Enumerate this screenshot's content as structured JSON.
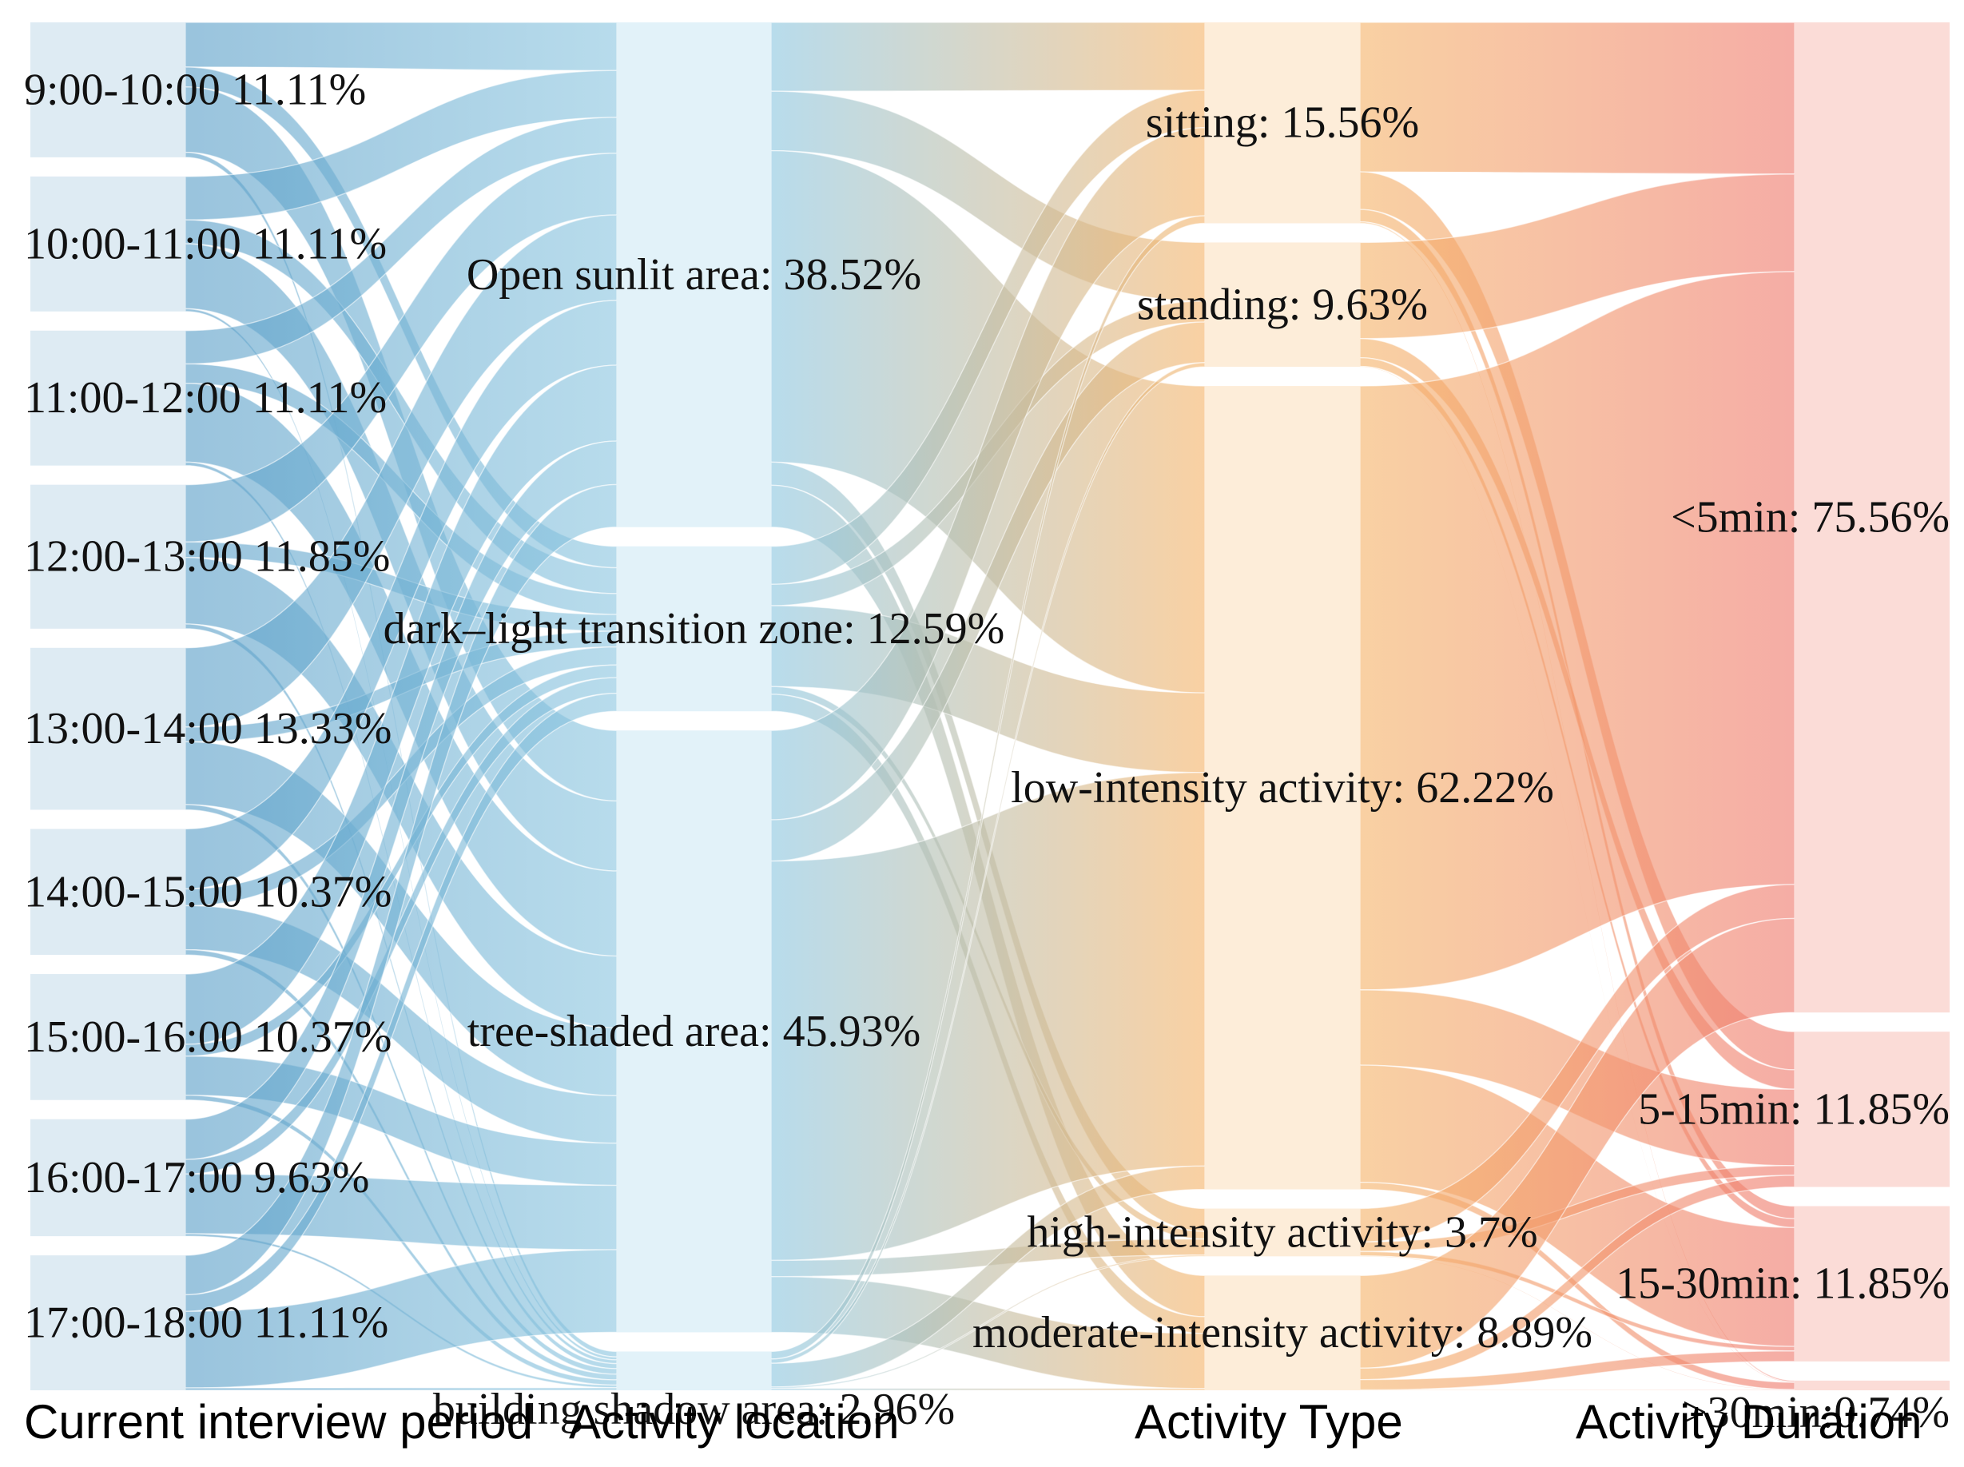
{
  "chart_data": {
    "type": "sankey",
    "columns": [
      {
        "title": "Current interview period",
        "color": "#5b9fc8",
        "node_fill": "#dbe9f2",
        "nodes": [
          {
            "name": "9:00-10:00",
            "value": 11.11,
            "label": "9:00-10:00 11.11%"
          },
          {
            "name": "10:00-11:00",
            "value": 11.11,
            "label": "10:00-11:00 11.11%"
          },
          {
            "name": "11:00-12:00",
            "value": 11.11,
            "label": "11:00-12:00 11.11%"
          },
          {
            "name": "12:00-13:00",
            "value": 11.85,
            "label": "12:00-13:00 11.85%"
          },
          {
            "name": "13:00-14:00",
            "value": 13.33,
            "label": "13:00-14:00 13.33%"
          },
          {
            "name": "14:00-15:00",
            "value": 10.37,
            "label": "14:00-15:00 10.37%"
          },
          {
            "name": "15:00-16:00",
            "value": 10.37,
            "label": "15:00-16:00 10.37%"
          },
          {
            "name": "16:00-17:00",
            "value": 9.63,
            "label": "16:00-17:00 9.63%"
          },
          {
            "name": "17:00-18:00",
            "value": 11.11,
            "label": "17:00-18:00 11.11%"
          }
        ]
      },
      {
        "title": "Activity location",
        "color": "#8cc6e0",
        "node_fill": "#e0f1f8",
        "nodes": [
          {
            "name": "Open sunlit area",
            "value": 38.52,
            "label": "Open sunlit area: 38.52%"
          },
          {
            "name": "dark–light transition zone",
            "value": 12.59,
            "label": "dark–light transition zone: 12.59%"
          },
          {
            "name": "tree-shaded area",
            "value": 45.93,
            "label": "tree-shaded area: 45.93%"
          },
          {
            "name": "building shadow area",
            "value": 2.96,
            "label": "building shadow area: 2.96%"
          }
        ]
      },
      {
        "title": "Activity Type",
        "color": "#f5b46a",
        "node_fill": "#fdebd6",
        "nodes": [
          {
            "name": "sitting",
            "value": 15.56,
            "label": "sitting: 15.56%"
          },
          {
            "name": "standing",
            "value": 9.63,
            "label": "standing: 9.63%"
          },
          {
            "name": "low-intensity activity",
            "value": 62.22,
            "label": "low-intensity activity: 62.22%"
          },
          {
            "name": "high-intensity activity",
            "value": 3.7,
            "label": "high-intensity activity: 3.7%"
          },
          {
            "name": "moderate-intensity activity",
            "value": 8.89,
            "label": "moderate-intensity activity: 8.89%"
          }
        ]
      },
      {
        "title": "Activity Duration",
        "color": "#ef7a6e",
        "node_fill": "#fbd9d4",
        "nodes": [
          {
            "name": "<5min",
            "value": 75.56,
            "label": "<5min: 75.56%"
          },
          {
            "name": "5-15min",
            "value": 11.85,
            "label": "5-15min: 11.85%"
          },
          {
            "name": "15-30min",
            "value": 11.85,
            "label": "15-30min: 11.85%"
          },
          {
            "name": ">30min",
            "value": 0.74,
            "label": ">30min:0.74%"
          }
        ]
      }
    ]
  }
}
